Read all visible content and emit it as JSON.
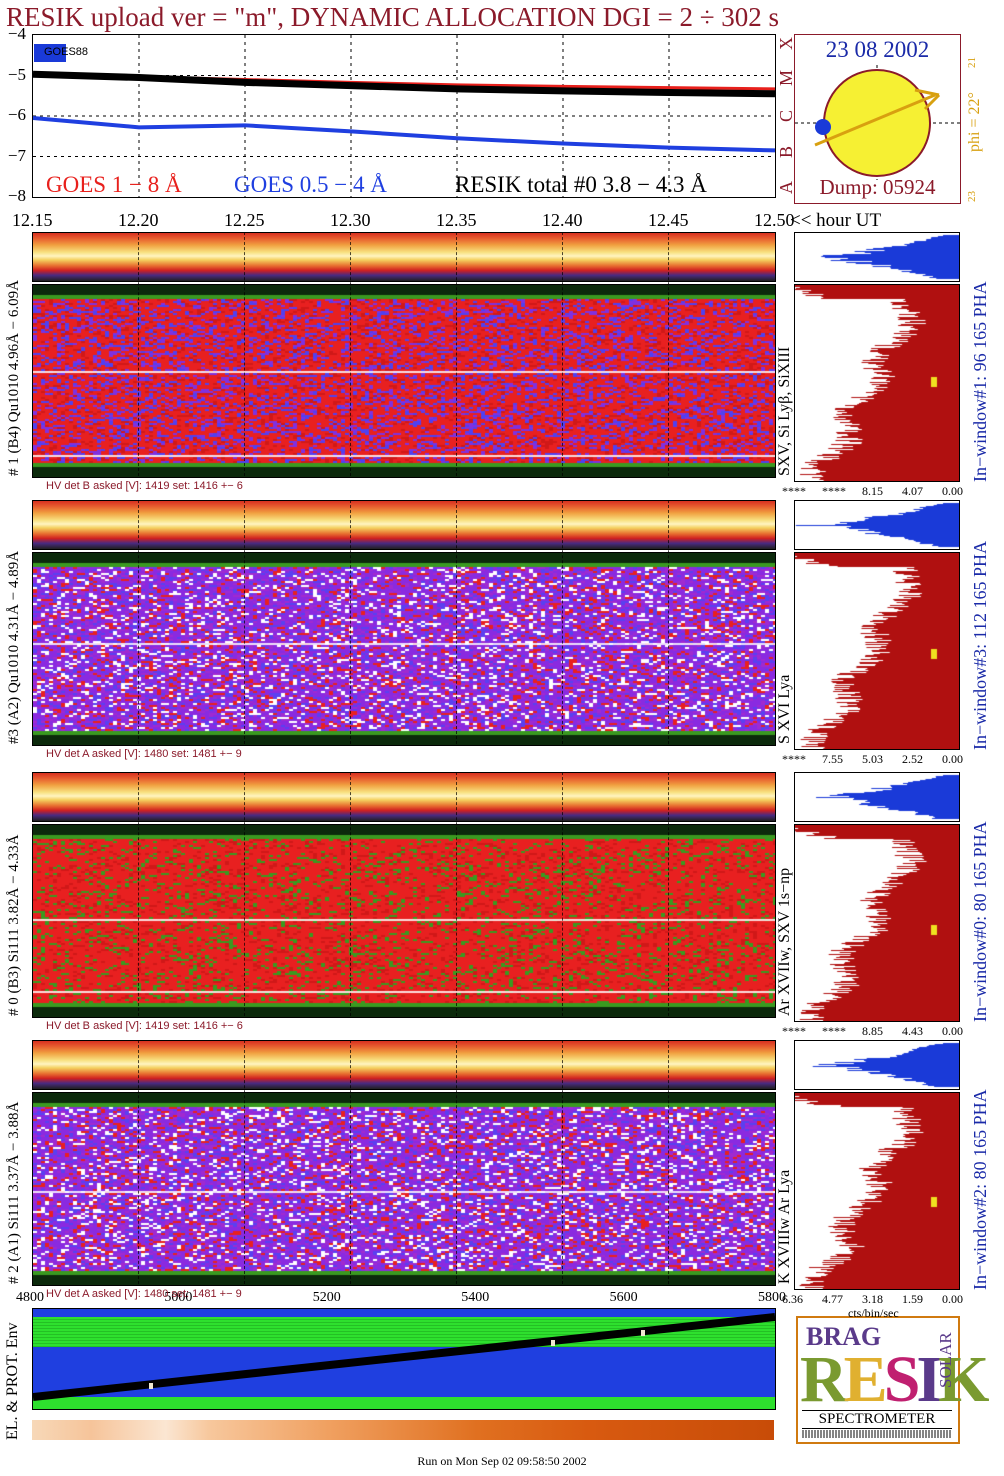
{
  "title": "RESIK upload ver = \"m\", DYNAMIC ALLOCATION  DGI =   2 ÷ 302 s",
  "goes": {
    "y_ticks": [
      "−4",
      "−5",
      "−6",
      "−7",
      "−8"
    ],
    "tag": "GOES88",
    "legend": {
      "goes_long": "GOES 1 − 8 Å",
      "goes_short": "GOES 0.5 − 4 Å",
      "resik_total": "RESIK total #0  3.8 − 4.3 Å"
    },
    "class_letters": [
      "X",
      "M",
      "C",
      "B",
      "A"
    ],
    "colors": {
      "long": "#e8201c",
      "short": "#1f3fe0",
      "resik": "#000000"
    }
  },
  "date_box": {
    "date": "23 08 2002",
    "dump": "Dump: 05924",
    "phi": "phi = 22°",
    "phi_top": "21",
    "phi_bottom": "23"
  },
  "ut_axis": {
    "ticks": [
      "12.15",
      "12.20",
      "12.25",
      "12.30",
      "12.35",
      "12.40",
      "12.45",
      "12.50"
    ],
    "unit": "<< hour UT"
  },
  "panels": [
    {
      "label": "# 1 (B4) Qu1010 4.96Å − 6.09Å",
      "line_label": "SXV, Si Lyβ, SiXIII",
      "window": "In−window#1:   96 165  PHA",
      "hv_text": "HV det B asked [V]:  1419  set:  1416  +−    6",
      "pha_ticks": [
        "****",
        "****",
        "8.15",
        "4.07",
        "0.00"
      ],
      "theme": "red"
    },
    {
      "label": "#3 (A2) Qu1010  4.31Å − 4.89Å",
      "line_label": "S XVI Lya",
      "window": "In−window#3:  112 165  PHA",
      "hv_text": "HV det A asked [V]:  1480  set:  1481  +−    9",
      "pha_ticks": [
        "****",
        "7.55",
        "5.03",
        "2.52",
        "0.00"
      ],
      "theme": "violet"
    },
    {
      "label": "# 0 (B3) Si111  3.82Å − 4.33Å",
      "line_label": "Ar XVIIw,  SXV 1s−np",
      "window": "In−window#0:   80 165  PHA",
      "hv_text": "HV det B asked [V]:  1419  set:  1416  +−    6",
      "pha_ticks": [
        "****",
        "****",
        "8.85",
        "4.43",
        "0.00"
      ],
      "theme": "red-green"
    },
    {
      "label": "# 2 (A1) Si111  3.37Å − 3.88Å",
      "line_label": "K XVIIIw  Ar Lya",
      "window": "In−window#2:   80 165  PHA",
      "hv_text": "HV det A asked [V]:  1480  set:  1481  +−    9",
      "pha_ticks": [
        "6.36",
        "4.77",
        "3.18",
        "1.59",
        "0.00"
      ],
      "pha_unit": "cts/bin/sec",
      "theme": "violet"
    }
  ],
  "env": {
    "label": "EL. & PROT. Env",
    "x_ticks": [
      "4800",
      "5000",
      "5200",
      "5400",
      "5600",
      "5800"
    ]
  },
  "logo": {
    "word": "RESIK",
    "sub": "SPECTROMETER",
    "left": "BRAG",
    "right": "SOLAR"
  },
  "footer": "Run on Mon Sep 02 09:58:50 2002",
  "chart_data": [
    {
      "type": "line",
      "title": "RESIK upload ver = \"m\", DYNAMIC ALLOCATION  DGI =   2 ÷ 302 s",
      "x": [
        "12.15",
        "12.20",
        "12.25",
        "12.30",
        "12.35",
        "12.40",
        "12.45",
        "12.50"
      ],
      "xlabel": "<< hour UT",
      "ylim": [
        -8,
        -4
      ],
      "series": [
        {
          "name": "GOES 1 − 8 Å",
          "values": [
            -5.0,
            -5.03,
            -5.1,
            -5.17,
            -5.23,
            -5.27,
            -5.3,
            -5.33
          ]
        },
        {
          "name": "GOES 0.5 − 4 Å",
          "values": [
            -6.05,
            -6.28,
            -6.23,
            -6.38,
            -6.55,
            -6.68,
            -6.78,
            -6.85
          ]
        },
        {
          "name": "RESIK total #0  3.8 − 4.3 Å",
          "values": [
            -4.97,
            -5.05,
            -5.17,
            -5.25,
            -5.33,
            -5.38,
            -5.42,
            -5.45
          ]
        }
      ]
    }
  ]
}
